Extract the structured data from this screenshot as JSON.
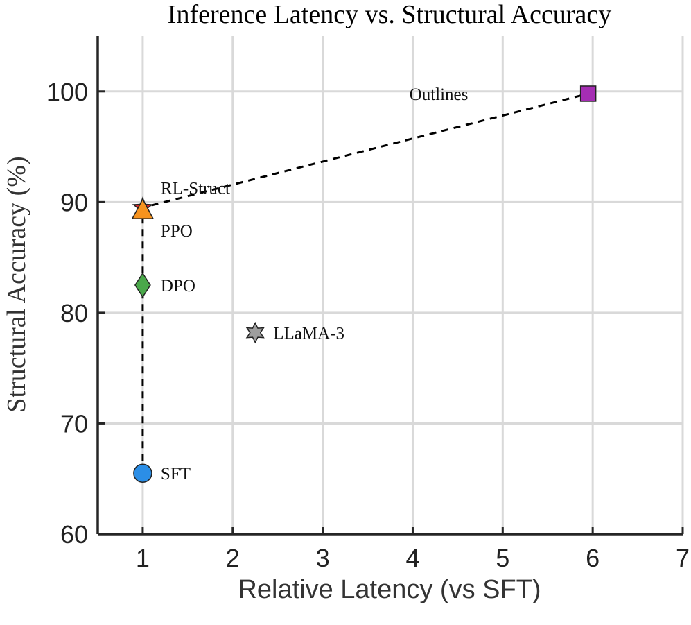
{
  "chart_data": {
    "type": "scatter",
    "title": "Inference Latency vs. Structural Accuracy",
    "xlabel": "Relative Latency (vs SFT)",
    "ylabel": "Structural Accuracy (%)",
    "xlim": [
      0.5,
      7
    ],
    "ylim": [
      60,
      105
    ],
    "xticks": [
      1,
      2,
      3,
      4,
      5,
      6,
      7
    ],
    "yticks": [
      60,
      70,
      80,
      90,
      100
    ],
    "grid": true,
    "points": [
      {
        "name": "SFT",
        "x": 1.0,
        "y": 65.5,
        "marker": "circle",
        "color": "#2b8ee6"
      },
      {
        "name": "DPO",
        "x": 1.0,
        "y": 82.5,
        "marker": "diamond",
        "color": "#4aa84a"
      },
      {
        "name": "PPO",
        "x": 1.0,
        "y": 89.2,
        "marker": "triangle",
        "color": "#f7931e"
      },
      {
        "name": "RL-Struct",
        "x": 1.0,
        "y": 89.5,
        "marker": "star",
        "color": "#d62728"
      },
      {
        "name": "LLaMA-3",
        "x": 2.25,
        "y": 78.2,
        "marker": "hexagram",
        "color": "#9e9e9e"
      },
      {
        "name": "Outlines",
        "x": 5.95,
        "y": 99.8,
        "marker": "square",
        "color": "#a52db3"
      }
    ],
    "frontier": [
      {
        "x": 1.0,
        "y": 65.5
      },
      {
        "x": 1.0,
        "y": 89.5
      },
      {
        "x": 5.95,
        "y": 99.8
      }
    ]
  }
}
